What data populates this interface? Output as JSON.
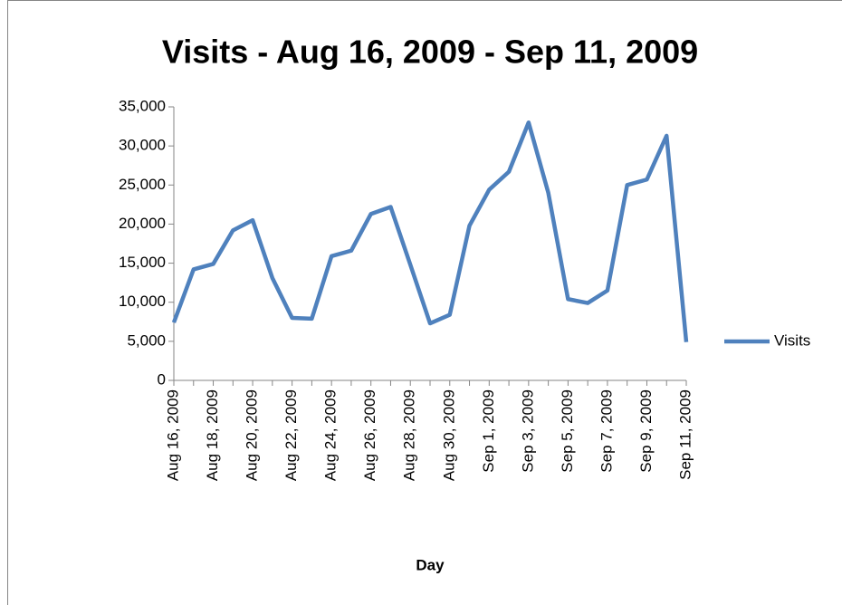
{
  "chart_data": {
    "type": "line",
    "title": "Visits - Aug 16, 2009 - Sep 11, 2009",
    "x_label": "Day",
    "categories": [
      "Aug 16, 2009",
      null,
      "Aug 18, 2009",
      null,
      "Aug 20, 2009",
      null,
      "Aug 22, 2009",
      null,
      "Aug 24, 2009",
      null,
      "Aug 26, 2009",
      null,
      "Aug 28, 2009",
      null,
      "Aug 30, 2009",
      null,
      "Sep 1, 2009",
      null,
      "Sep 3, 2009",
      null,
      "Sep 5, 2009",
      null,
      "Sep 7, 2009",
      null,
      "Sep 9, 2009",
      null,
      "Sep 11, 2009"
    ],
    "series": [
      {
        "name": "Visits",
        "color": "#4f81bd",
        "values": [
          7400,
          14200,
          14900,
          19200,
          20500,
          13100,
          8000,
          7900,
          15900,
          16600,
          21300,
          22200,
          14800,
          7300,
          8400,
          19800,
          24400,
          26700,
          33000,
          24000,
          10400,
          9900,
          11500,
          25000,
          25700,
          31300,
          4900
        ]
      }
    ],
    "ylim": [
      0,
      35000
    ],
    "yticks": [
      0,
      {
        "value": 5000,
        "label": "5,000"
      },
      {
        "value": 10000,
        "label": "10,000"
      },
      {
        "value": 15000,
        "label": "15,000"
      },
      {
        "value": 20000,
        "label": "20,000"
      },
      {
        "value": 25000,
        "label": "25,000"
      },
      {
        "value": 30000,
        "label": "30,000"
      },
      {
        "value": 35000,
        "label": "35,000"
      }
    ],
    "grid": false,
    "legend": "right"
  }
}
